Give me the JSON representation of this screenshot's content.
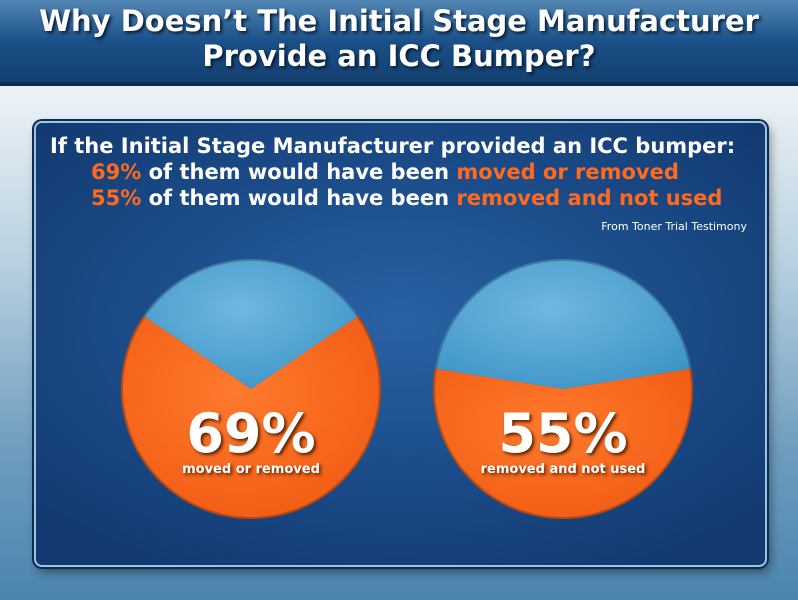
{
  "title": {
    "line1": "Why Doesn’t The Initial Stage Manufacturer",
    "line2": "Provide an ICC Bumper?"
  },
  "headline": "If the Initial Stage Manufacturer provided an ICC bumper:",
  "stats": [
    {
      "value": "69%",
      "middle": " of them would have been ",
      "highlight": "moved or removed"
    },
    {
      "value": "55%",
      "middle": " of them would have been ",
      "highlight": "removed and not used"
    }
  ],
  "source": "From Toner Trial Testimony",
  "colors": {
    "highlight": "#ff6a1f",
    "slice_primary": "#f05a12",
    "slice_remainder": "#3d94c7"
  },
  "chart_data": [
    {
      "type": "pie",
      "slices": [
        {
          "label": "moved or removed",
          "value": 69
        },
        {
          "label": "",
          "value": 31
        }
      ],
      "center_label": "69%",
      "center_caption": "moved or removed"
    },
    {
      "type": "pie",
      "slices": [
        {
          "label": "removed and not used",
          "value": 55
        },
        {
          "label": "",
          "value": 45
        }
      ],
      "center_label": "55%",
      "center_caption": "removed and not used"
    }
  ]
}
